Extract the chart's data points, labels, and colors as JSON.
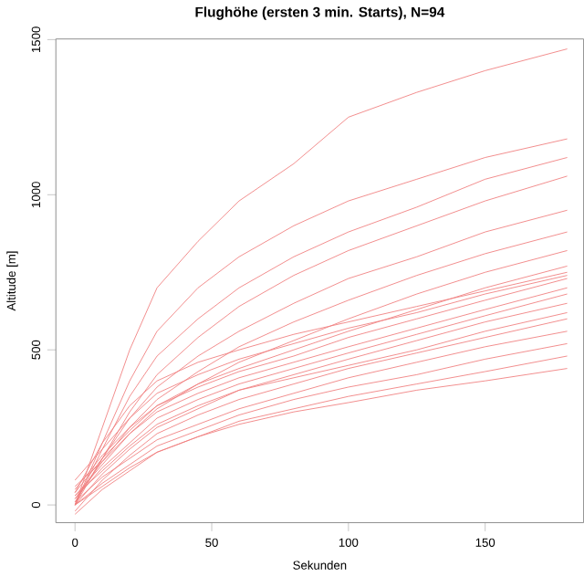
{
  "chart_data": {
    "type": "line",
    "title": "Flughöhe (ersten 3 min. Starts), N=94",
    "xlabel": "Sekunden",
    "ylabel": "Altitude [m]",
    "xlim": [
      -7,
      186
    ],
    "ylim": [
      -57,
      1502
    ],
    "xticks": [
      0,
      50,
      100,
      150
    ],
    "yticks": [
      0,
      500,
      1000,
      1500
    ],
    "x": [
      0,
      10,
      20,
      30,
      45,
      60,
      80,
      100,
      125,
      150,
      180
    ],
    "series": [
      {
        "color": "#f08080",
        "values": [
          0,
          250,
          500,
          700,
          850,
          980,
          1100,
          1250,
          1330,
          1400,
          1470
        ]
      },
      {
        "color": "#f08080",
        "values": [
          0,
          200,
          400,
          560,
          700,
          800,
          900,
          980,
          1050,
          1120,
          1180
        ]
      },
      {
        "color": "#f08080",
        "values": [
          0,
          180,
          350,
          480,
          600,
          700,
          800,
          880,
          960,
          1050,
          1120
        ]
      },
      {
        "color": "#f08080",
        "values": [
          0,
          150,
          300,
          420,
          540,
          640,
          740,
          820,
          900,
          980,
          1060
        ]
      },
      {
        "color": "#f08080",
        "values": [
          10,
          150,
          280,
          380,
          480,
          560,
          650,
          730,
          800,
          880,
          950
        ]
      },
      {
        "color": "#f08080",
        "values": [
          20,
          140,
          250,
          340,
          430,
          510,
          590,
          660,
          740,
          810,
          880
        ]
      },
      {
        "color": "#f08080",
        "values": [
          30,
          130,
          230,
          310,
          390,
          460,
          530,
          600,
          680,
          750,
          820
        ]
      },
      {
        "color": "#f08080",
        "values": [
          40,
          150,
          240,
          320,
          390,
          440,
          500,
          560,
          630,
          700,
          770
        ]
      },
      {
        "color": "#f08080",
        "values": [
          50,
          160,
          250,
          320,
          380,
          430,
          480,
          540,
          600,
          660,
          730
        ]
      },
      {
        "color": "#f08080",
        "values": [
          60,
          140,
          230,
          300,
          360,
          410,
          460,
          510,
          570,
          630,
          700
        ]
      },
      {
        "color": "#f08080",
        "values": [
          20,
          120,
          200,
          280,
          340,
          390,
          440,
          490,
          550,
          610,
          680
        ]
      },
      {
        "color": "#f08080",
        "values": [
          0,
          100,
          180,
          250,
          310,
          370,
          420,
          470,
          530,
          590,
          650
        ]
      },
      {
        "color": "#f08080",
        "values": [
          30,
          110,
          190,
          260,
          320,
          370,
          410,
          450,
          500,
          560,
          620
        ]
      },
      {
        "color": "#f08080",
        "values": [
          -20,
          80,
          160,
          230,
          290,
          340,
          390,
          440,
          490,
          540,
          600
        ]
      },
      {
        "color": "#f08080",
        "values": [
          10,
          90,
          150,
          210,
          260,
          310,
          360,
          410,
          460,
          510,
          560
        ]
      },
      {
        "color": "#f08080",
        "values": [
          0,
          70,
          130,
          190,
          240,
          290,
          340,
          380,
          420,
          470,
          520
        ]
      },
      {
        "color": "#f08080",
        "values": [
          -30,
          50,
          110,
          170,
          220,
          270,
          310,
          350,
          390,
          430,
          480
        ]
      },
      {
        "color": "#f08080",
        "values": [
          0,
          60,
          120,
          170,
          220,
          260,
          300,
          330,
          370,
          400,
          440
        ]
      },
      {
        "color": "#f08080",
        "values": [
          80,
          180,
          280,
          360,
          420,
          470,
          520,
          570,
          620,
          680,
          740
        ]
      },
      {
        "color": "#f08080",
        "values": [
          40,
          200,
          320,
          400,
          460,
          500,
          550,
          590,
          640,
          690,
          750
        ]
      }
    ]
  }
}
